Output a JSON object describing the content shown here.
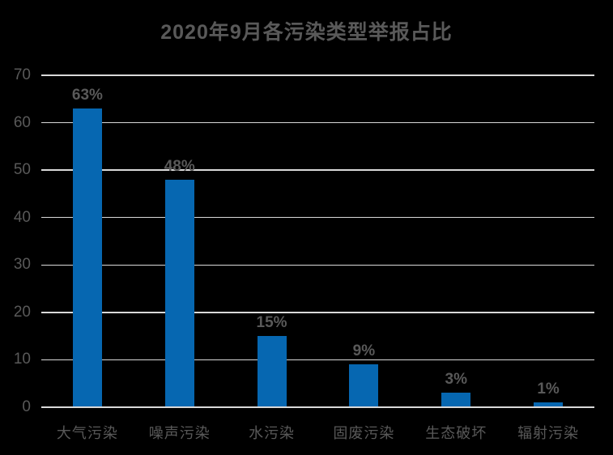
{
  "chart_data": {
    "type": "bar",
    "title": "2020年9月各污染类型举报占比",
    "categories": [
      "大气污染",
      "噪声污染",
      "水污染",
      "固废污染",
      "生态破坏",
      "辐射污染"
    ],
    "values": [
      63,
      48,
      15,
      9,
      3,
      1
    ],
    "value_labels": [
      "63%",
      "48%",
      "15%",
      "9%",
      "3%",
      "1%"
    ],
    "xlabel": "",
    "ylabel": "",
    "ylim": [
      0,
      70
    ],
    "yticks": [
      0,
      10,
      20,
      30,
      40,
      50,
      60,
      70
    ],
    "grid": "horizontal-only",
    "legend": "none",
    "colors": {
      "background": "#000000",
      "bar": "#0667B1",
      "text": "#595959",
      "gridline": "#D9D9D9",
      "baseline": "#D9D9D9"
    }
  }
}
